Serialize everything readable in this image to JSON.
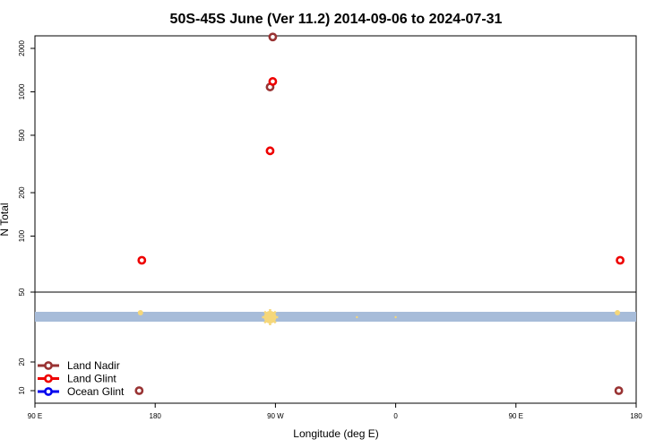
{
  "chart_data": {
    "type": "scatter",
    "title": "50S-45S June (Ver 11.2)   2014-09-06 to 2024-07-31",
    "xlabel": "Longitude (deg E)",
    "ylabel": "N Total",
    "x_ticks": [
      {
        "value": 90,
        "label": "90 E"
      },
      {
        "value": 180,
        "label": "180"
      },
      {
        "value": 270,
        "label": "90 W"
      },
      {
        "value": 360,
        "label": "0"
      },
      {
        "value": 450,
        "label": "90 E"
      },
      {
        "value": 540,
        "label": "180"
      }
    ],
    "xlim": [
      90,
      540
    ],
    "ylim_upper": [
      50,
      3000
    ],
    "y_ticks_upper": [
      50,
      100,
      200,
      500,
      1000,
      2000
    ],
    "y_scale_upper": "log",
    "y_ticks_lower": [
      10,
      20
    ],
    "y_scale_lower": "log",
    "series": [
      {
        "name": "Land Nadir",
        "color": "#993333",
        "points": [
          [
            268,
            2400
          ],
          [
            266,
            1080
          ],
          [
            168,
            10
          ],
          [
            527,
            10
          ]
        ]
      },
      {
        "name": "Land Glint",
        "color": "#ee0000",
        "points": [
          [
            268,
            1180
          ],
          [
            266,
            390
          ],
          [
            170,
            68
          ],
          [
            528,
            68
          ]
        ]
      },
      {
        "name": "Ocean Glint",
        "color": "#0000ee",
        "points": []
      }
    ],
    "ocean_band_color": "#a7bcd9",
    "ocean_markers": [
      {
        "x": 266,
        "size": 7
      },
      {
        "x": 169,
        "size": 3
      },
      {
        "x": 526,
        "size": 3
      },
      {
        "x": 331,
        "size": 1.2
      },
      {
        "x": 360,
        "size": 1.2
      }
    ],
    "marker_highlight_color": "#f5d77a",
    "legend_position": "bottom-left"
  }
}
